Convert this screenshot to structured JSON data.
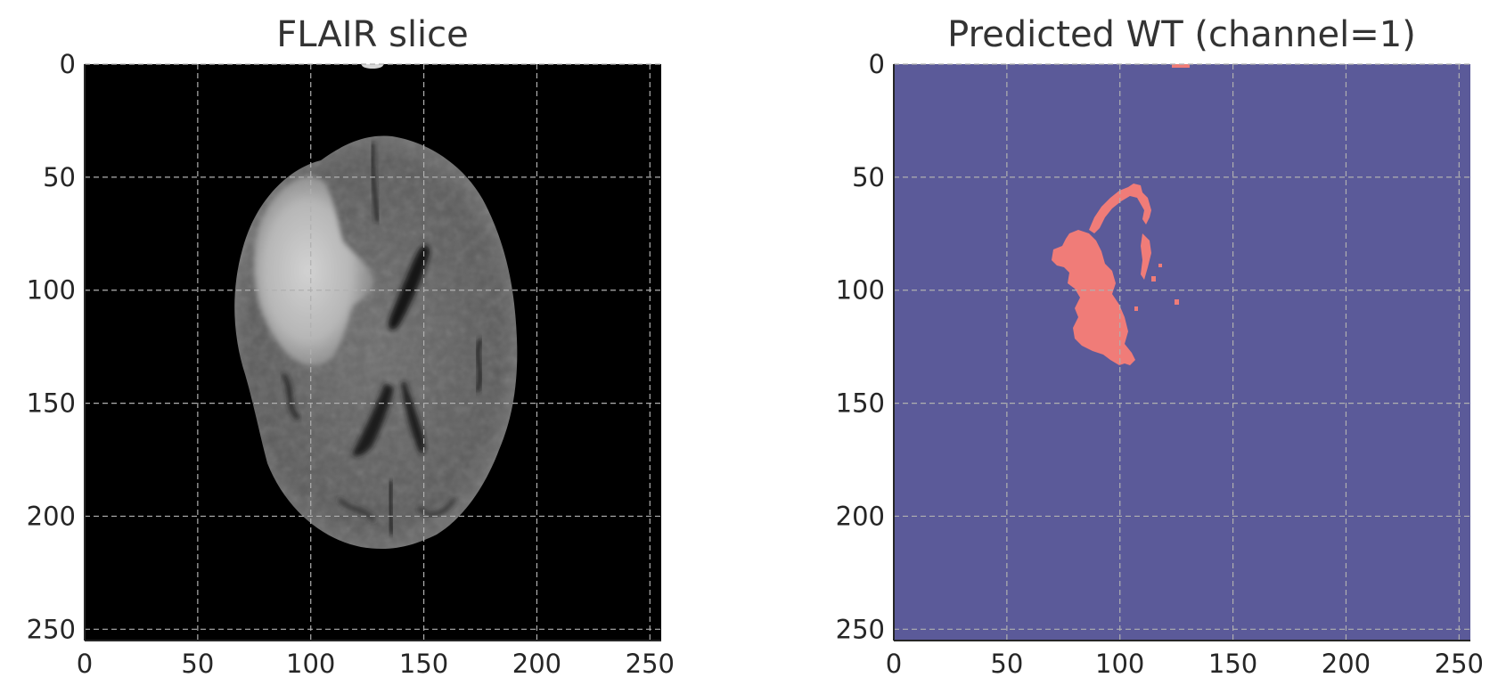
{
  "panels": [
    {
      "id": "flair",
      "title": "FLAIR slice",
      "kind": "mri-image",
      "x_ticks": [
        0,
        50,
        100,
        150,
        200,
        250
      ],
      "y_ticks": [
        0,
        50,
        100,
        150,
        200,
        250
      ],
      "xlim": [
        0,
        255
      ],
      "ylim": [
        255,
        0
      ],
      "grid": true,
      "background_color": "#000000"
    },
    {
      "id": "prediction",
      "title": "Predicted WT (channel=1)",
      "kind": "segmentation-mask",
      "x_ticks": [
        0,
        50,
        100,
        150,
        200,
        250
      ],
      "y_ticks": [
        0,
        50,
        100,
        150,
        200,
        250
      ],
      "xlim": [
        0,
        255
      ],
      "ylim": [
        255,
        0
      ],
      "grid": true,
      "background_color": "#5b5a99",
      "mask_color": "#f07c78"
    }
  ]
}
